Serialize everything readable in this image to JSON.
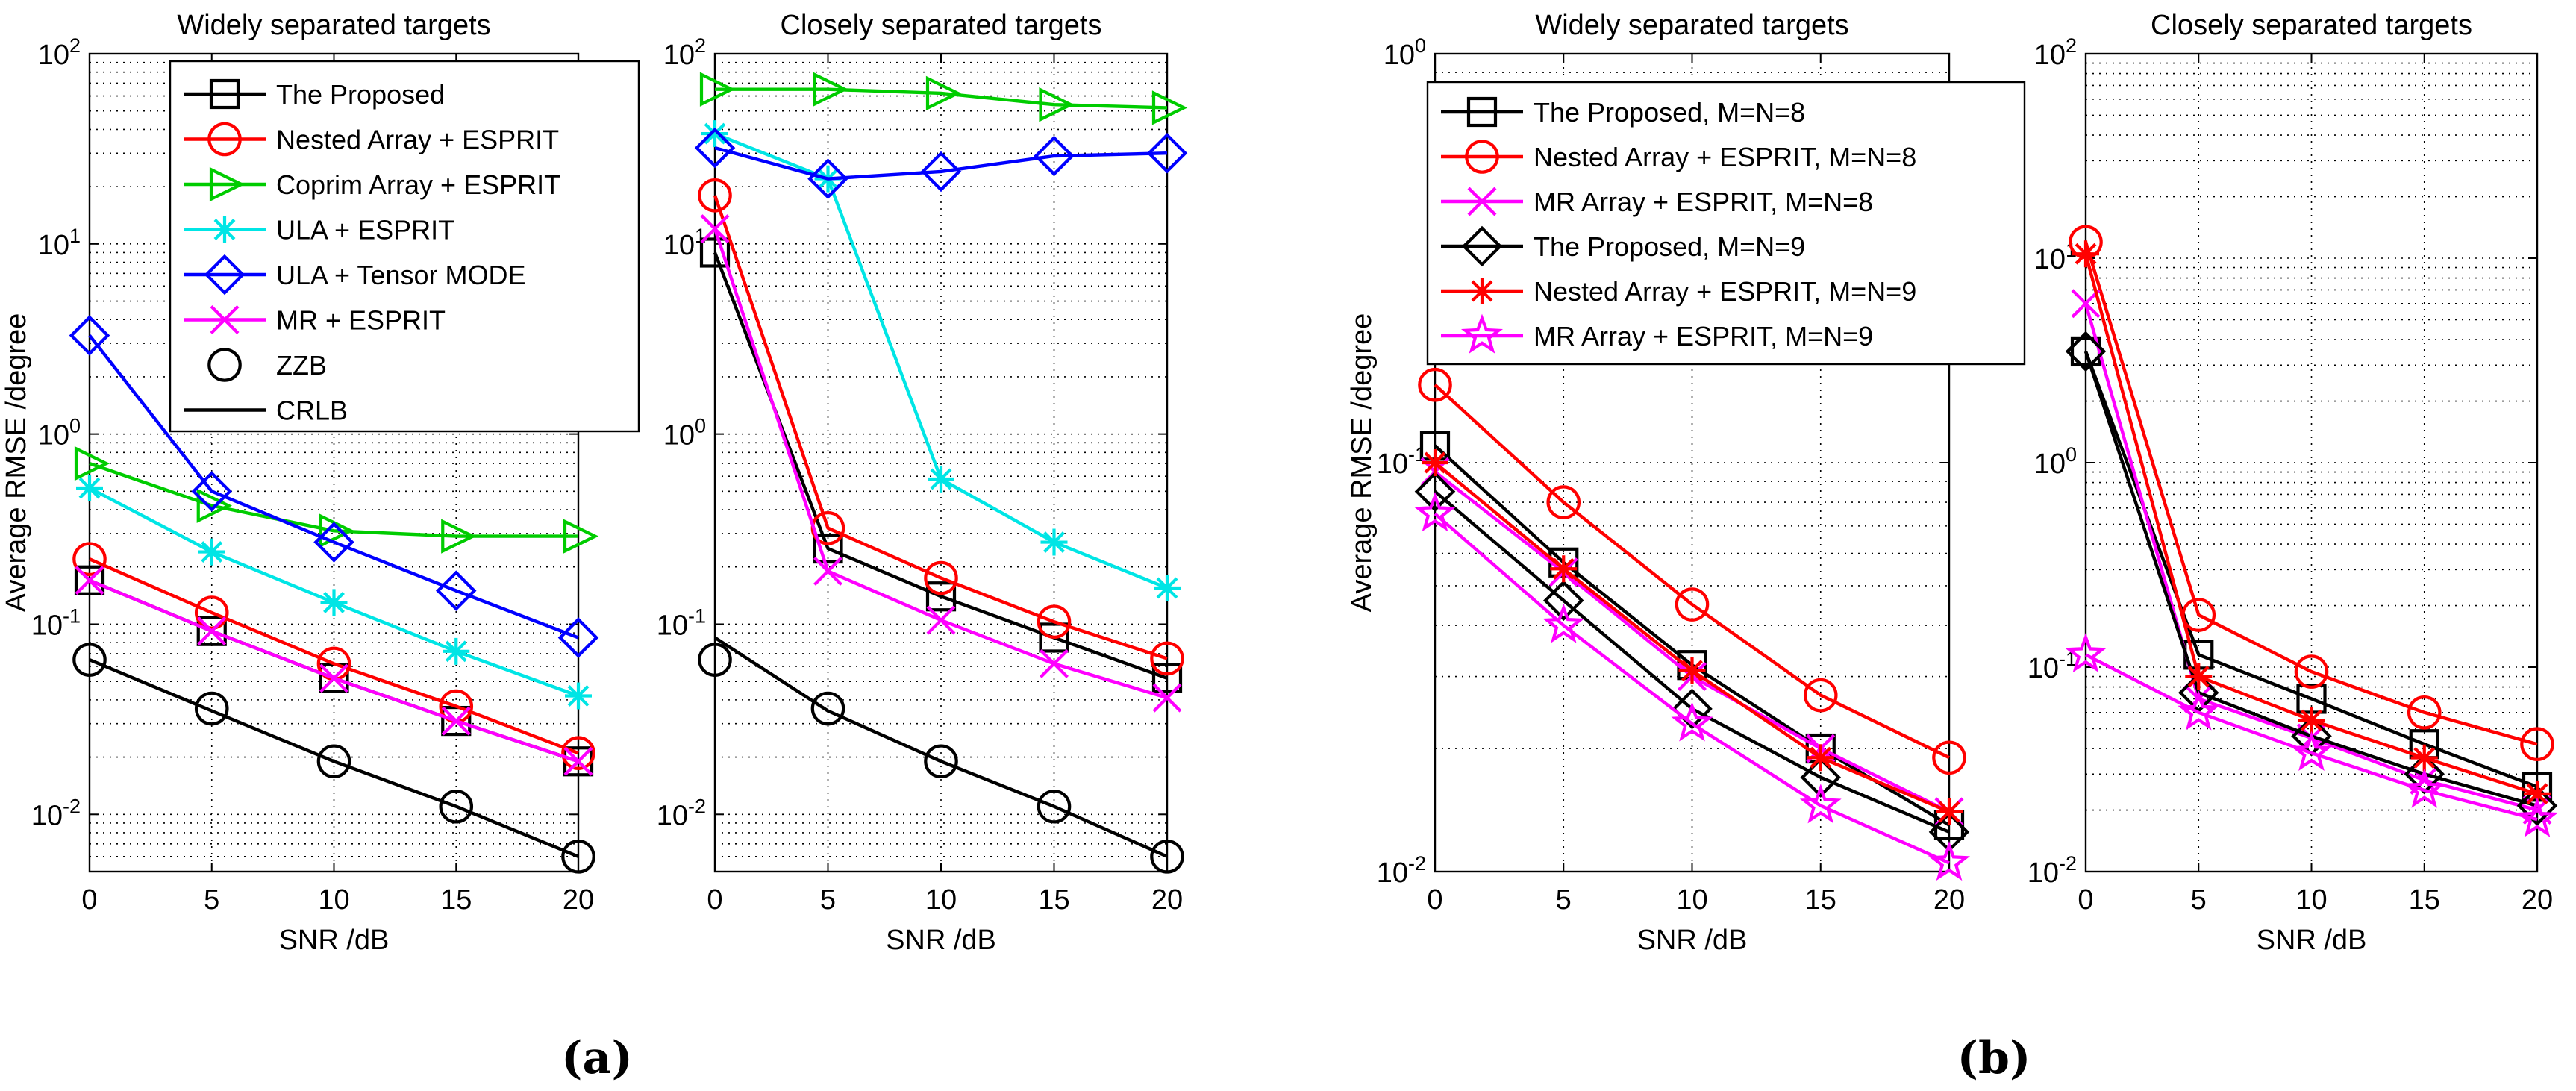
{
  "panel_labels": [
    "(a)",
    "(b)"
  ],
  "chart_data": [
    {
      "type": "line",
      "panel": "a",
      "title": "Widely separated targets",
      "xlabel": "SNR  /dB",
      "ylabel": "Average RMSE  /degree",
      "xscale": "linear",
      "yscale": "log",
      "xlim": [
        0,
        20
      ],
      "ylim": [
        0.005,
        100
      ],
      "yticks": [
        0.01,
        0.1,
        1,
        10,
        100
      ],
      "ytick_labels": [
        {
          "base": "10",
          "exp": "-2"
        },
        {
          "base": "10",
          "exp": "-1"
        },
        {
          "base": "10",
          "exp": "0"
        },
        {
          "base": "10",
          "exp": "1"
        },
        {
          "base": "10",
          "exp": "2"
        }
      ],
      "x": [
        0,
        5,
        10,
        15,
        20
      ],
      "xtick_labels": [
        "0",
        "5",
        "10",
        "15",
        "20"
      ],
      "grid": true,
      "legend": "top-right",
      "series": [
        {
          "name": "The Proposed",
          "color": "#000000",
          "marker": "square",
          "values": [
            0.17,
            0.092,
            0.052,
            0.031,
            0.019
          ]
        },
        {
          "name": "Nested Array + ESPRIT",
          "color": "#ff0000",
          "marker": "circle",
          "values": [
            0.22,
            0.115,
            0.062,
            0.037,
            0.021
          ]
        },
        {
          "name": "Coprim Array + ESPRIT",
          "color": "#00cc00",
          "marker": "triangle-right",
          "values": [
            0.7,
            0.42,
            0.31,
            0.29,
            0.29
          ]
        },
        {
          "name": "ULA + ESPRIT",
          "color": "#00e5e5",
          "marker": "asterisk",
          "values": [
            0.52,
            0.24,
            0.13,
            0.072,
            0.042
          ]
        },
        {
          "name": "ULA + Tensor MODE",
          "color": "#0000ff",
          "marker": "diamond",
          "values": [
            3.3,
            0.5,
            0.27,
            0.15,
            0.085
          ]
        },
        {
          "name": "MR + ESPRIT",
          "color": "#ff00ff",
          "marker": "x",
          "values": [
            0.17,
            0.092,
            0.052,
            0.031,
            0.019
          ]
        },
        {
          "name": "ZZB",
          "color": "#000000",
          "marker": "circle",
          "line": false,
          "values": [
            0.065,
            0.036,
            0.019,
            0.011,
            0.006
          ]
        },
        {
          "name": "CRLB",
          "color": "#000000",
          "marker": "none",
          "values": [
            0.065,
            0.035,
            0.019,
            0.011,
            0.006
          ]
        }
      ]
    },
    {
      "type": "line",
      "panel": "a",
      "title": "Closely separated targets",
      "xlabel": "SNR  /dB",
      "ylabel": "",
      "xscale": "linear",
      "yscale": "log",
      "xlim": [
        0,
        20
      ],
      "ylim": [
        0.005,
        100
      ],
      "yticks": [
        0.01,
        0.1,
        1,
        10,
        100
      ],
      "ytick_labels": [
        {
          "base": "10",
          "exp": "-2"
        },
        {
          "base": "10",
          "exp": "-1"
        },
        {
          "base": "10",
          "exp": "0"
        },
        {
          "base": "10",
          "exp": "1"
        },
        {
          "base": "10",
          "exp": "2"
        }
      ],
      "x": [
        0,
        5,
        10,
        15,
        20
      ],
      "xtick_labels": [
        "0",
        "5",
        "10",
        "15",
        "20"
      ],
      "grid": true,
      "legend": "none",
      "series": [
        {
          "name": "The Proposed",
          "color": "#000000",
          "marker": "square",
          "values": [
            9,
            0.25,
            0.14,
            0.085,
            0.052
          ]
        },
        {
          "name": "Nested Array + ESPRIT",
          "color": "#ff0000",
          "marker": "circle",
          "values": [
            18,
            0.32,
            0.175,
            0.103,
            0.066
          ]
        },
        {
          "name": "Coprim Array + ESPRIT",
          "color": "#00cc00",
          "marker": "triangle-right",
          "values": [
            65,
            65,
            62,
            54,
            52
          ]
        },
        {
          "name": "ULA + ESPRIT",
          "color": "#00e5e5",
          "marker": "asterisk",
          "values": [
            38,
            22,
            0.58,
            0.27,
            0.155
          ]
        },
        {
          "name": "ULA + Tensor MODE",
          "color": "#0000ff",
          "marker": "diamond",
          "values": [
            32,
            22,
            24,
            29,
            30
          ]
        },
        {
          "name": "MR + ESPRIT",
          "color": "#ff00ff",
          "marker": "x",
          "values": [
            12,
            0.19,
            0.105,
            0.062,
            0.041
          ]
        },
        {
          "name": "ZZB",
          "color": "#000000",
          "marker": "circle",
          "line": false,
          "values": [
            0.065,
            0.036,
            0.019,
            0.011,
            0.006
          ]
        },
        {
          "name": "CRLB",
          "color": "#000000",
          "marker": "none",
          "values": [
            0.085,
            0.035,
            0.019,
            0.011,
            0.006
          ]
        }
      ]
    },
    {
      "type": "line",
      "panel": "b",
      "title": "Widely separated targets",
      "xlabel": "SNR  /dB",
      "ylabel": "Average RMSE  /degree",
      "xscale": "linear",
      "yscale": "log",
      "xlim": [
        0,
        20
      ],
      "ylim": [
        0.01,
        1
      ],
      "yticks": [
        0.01,
        0.1,
        1
      ],
      "ytick_labels": [
        {
          "base": "10",
          "exp": "-2"
        },
        {
          "base": "10",
          "exp": "-1"
        },
        {
          "base": "10",
          "exp": "0"
        }
      ],
      "x": [
        0,
        5,
        10,
        15,
        20
      ],
      "xtick_labels": [
        "0",
        "5",
        "10",
        "15",
        "20"
      ],
      "grid": true,
      "legend": "top-left",
      "series": [
        {
          "name": "The Proposed, M=N=8",
          "color": "#000000",
          "marker": "square",
          "values": [
            0.11,
            0.057,
            0.032,
            0.02,
            0.013
          ]
        },
        {
          "name": "Nested Array + ESPRIT, M=N=8",
          "color": "#ff0000",
          "marker": "circle",
          "values": [
            0.155,
            0.08,
            0.045,
            0.027,
            0.019
          ]
        },
        {
          "name": "MR Array + ESPRIT, M=N=8",
          "color": "#ff00ff",
          "marker": "x",
          "values": [
            0.095,
            0.054,
            0.03,
            0.02,
            0.014
          ]
        },
        {
          "name": "The Proposed, M=N=9",
          "color": "#000000",
          "marker": "diamond",
          "values": [
            0.085,
            0.046,
            0.025,
            0.017,
            0.0125
          ]
        },
        {
          "name": "Nested Array + ESPRIT, M=N=9",
          "color": "#ff0000",
          "marker": "asterisk",
          "values": [
            0.1,
            0.055,
            0.031,
            0.019,
            0.014
          ]
        },
        {
          "name": "MR Array + ESPRIT, M=N=9",
          "color": "#ff00ff",
          "marker": "star",
          "values": [
            0.075,
            0.04,
            0.023,
            0.0145,
            0.0105
          ]
        }
      ]
    },
    {
      "type": "line",
      "panel": "b",
      "title": "Closely separated targets",
      "xlabel": "SNR  /dB",
      "ylabel": "",
      "xscale": "linear",
      "yscale": "log",
      "xlim": [
        0,
        20
      ],
      "ylim": [
        0.01,
        100
      ],
      "yticks": [
        0.01,
        0.1,
        1,
        10,
        100
      ],
      "ytick_labels": [
        {
          "base": "10",
          "exp": "-2"
        },
        {
          "base": "10",
          "exp": "-1"
        },
        {
          "base": "10",
          "exp": "0"
        },
        {
          "base": "10",
          "exp": "1"
        },
        {
          "base": "10",
          "exp": "2"
        }
      ],
      "x": [
        0,
        5,
        10,
        15,
        20
      ],
      "xtick_labels": [
        "0",
        "5",
        "10",
        "15",
        "20"
      ],
      "grid": true,
      "legend": "none",
      "series": [
        {
          "name": "The Proposed, M=N=8",
          "color": "#000000",
          "marker": "square",
          "values": [
            3.5,
            0.115,
            0.07,
            0.042,
            0.026
          ]
        },
        {
          "name": "Nested Array + ESPRIT, M=N=8",
          "color": "#ff0000",
          "marker": "circle",
          "values": [
            12,
            0.18,
            0.095,
            0.06,
            0.042
          ]
        },
        {
          "name": "MR Array + ESPRIT, M=N=8",
          "color": "#ff00ff",
          "marker": "x",
          "values": [
            6,
            0.07,
            0.045,
            0.028,
            0.02
          ]
        },
        {
          "name": "The Proposed, M=N=9",
          "color": "#000000",
          "marker": "diamond",
          "values": [
            3.5,
            0.075,
            0.046,
            0.03,
            0.021
          ]
        },
        {
          "name": "Nested Array + ESPRIT, M=N=9",
          "color": "#ff0000",
          "marker": "asterisk",
          "values": [
            10.5,
            0.09,
            0.055,
            0.036,
            0.024
          ]
        },
        {
          "name": "MR Array + ESPRIT, M=N=9",
          "color": "#ff00ff",
          "marker": "star",
          "values": [
            0.115,
            0.06,
            0.038,
            0.025,
            0.018
          ]
        }
      ]
    }
  ]
}
